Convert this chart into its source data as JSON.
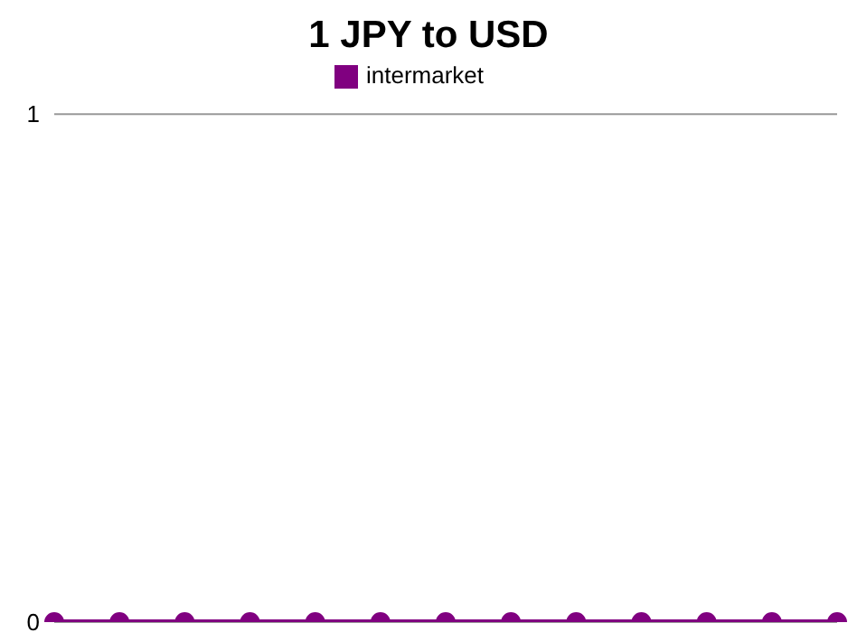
{
  "chart_data": {
    "type": "line",
    "title": "1 JPY to USD",
    "categories": [
      null,
      null,
      null,
      null,
      null,
      null,
      null,
      null,
      null,
      null,
      null,
      null,
      null
    ],
    "series": [
      {
        "name": "intermarket",
        "color": "#800080",
        "values": [
          0,
          0,
          0,
          0,
          0,
          0,
          0,
          0,
          0,
          0,
          0,
          0,
          0
        ]
      }
    ],
    "ylim": [
      0,
      1
    ],
    "yticks": [
      0,
      1
    ],
    "grid": "y",
    "legend": "top",
    "marker": "circle",
    "line_style": "solid",
    "tick_labels": "y"
  }
}
